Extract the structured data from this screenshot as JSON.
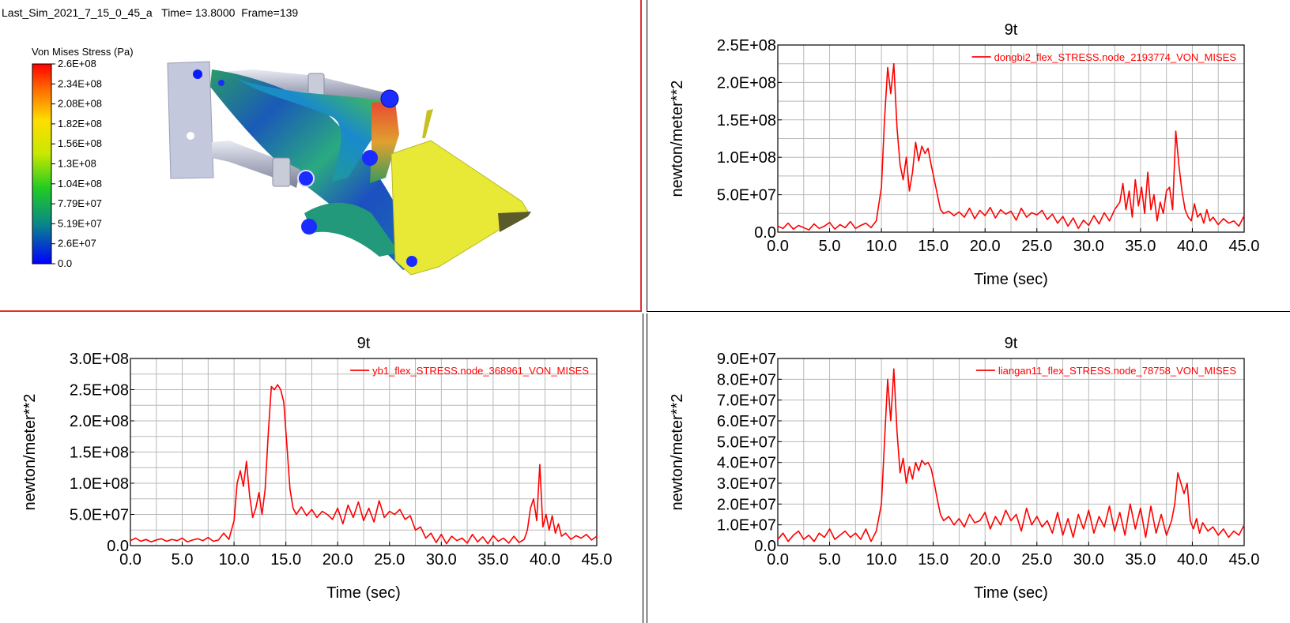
{
  "animation": {
    "sim_name": "Last_Sim_2021_7_15_0_45_a",
    "time_label": "Time= 13.8000",
    "frame_label": "Frame=139",
    "legend_title": "Von Mises Stress (Pa)",
    "legend_ticks": [
      "2.6E+08",
      "2.34E+08",
      "2.08E+08",
      "1.82E+08",
      "1.56E+08",
      "1.3E+08",
      "1.04E+08",
      "7.79E+07",
      "5.19E+07",
      "2.6E+07",
      "0.0"
    ],
    "colors": {
      "border": "#e03030",
      "stress_high": "#ff0000",
      "stress_low": "#0000ff",
      "bucket": "#e8e836",
      "frame": "#c4c8dc"
    }
  },
  "chart_data": [
    {
      "type": "line",
      "title": "9t",
      "xlabel": "Time (sec)",
      "ylabel": "newton/meter**2",
      "xlim": [
        0,
        45
      ],
      "ylim": [
        0,
        250000000
      ],
      "xticks": [
        "0.0",
        "5.0",
        "10.0",
        "15.0",
        "20.0",
        "25.0",
        "30.0",
        "35.0",
        "40.0",
        "45.0"
      ],
      "yticks": [
        "0.0",
        "5.0E+07",
        "1.0E+08",
        "1.5E+08",
        "2.0E+08",
        "2.5E+08"
      ],
      "grid": true,
      "legend_position": "top-right",
      "color": "#ff0000",
      "series": [
        {
          "name": "dongbi2_flex_STRESS.node_2193774_VON_MISES",
          "x": [
            0,
            0.5,
            1,
            1.5,
            2,
            2.5,
            3,
            3.5,
            4,
            4.5,
            5,
            5.5,
            6,
            6.5,
            7,
            7.5,
            8,
            8.5,
            9,
            9.5,
            10,
            10.3,
            10.6,
            10.9,
            11.2,
            11.5,
            11.8,
            12.1,
            12.4,
            12.7,
            13,
            13.3,
            13.6,
            13.9,
            14.2,
            14.5,
            14.8,
            15.1,
            15.4,
            15.7,
            16,
            16.5,
            17,
            17.5,
            18,
            18.5,
            19,
            19.5,
            20,
            20.5,
            21,
            21.5,
            22,
            22.5,
            23,
            23.5,
            24,
            24.5,
            25,
            25.5,
            26,
            26.5,
            27,
            27.5,
            28,
            28.5,
            29,
            29.5,
            30,
            30.5,
            31,
            31.5,
            32,
            32.5,
            33,
            33.3,
            33.6,
            33.9,
            34.2,
            34.5,
            34.8,
            35.1,
            35.4,
            35.7,
            36,
            36.3,
            36.6,
            36.9,
            37.2,
            37.5,
            37.8,
            38.1,
            38.4,
            38.7,
            39,
            39.3,
            39.6,
            39.9,
            40.2,
            40.5,
            40.8,
            41.1,
            41.4,
            41.7,
            42,
            42.5,
            43,
            43.5,
            44,
            44.5,
            45
          ],
          "values": [
            8000000,
            5000000,
            12000000,
            4000000,
            9000000,
            6000000,
            3000000,
            11000000,
            5000000,
            8000000,
            13000000,
            4000000,
            10000000,
            6000000,
            14000000,
            5000000,
            9000000,
            12000000,
            6000000,
            15000000,
            60000000,
            150000000,
            220000000,
            185000000,
            225000000,
            140000000,
            90000000,
            70000000,
            100000000,
            55000000,
            80000000,
            120000000,
            95000000,
            115000000,
            105000000,
            112000000,
            90000000,
            70000000,
            50000000,
            30000000,
            25000000,
            28000000,
            22000000,
            27000000,
            20000000,
            32000000,
            18000000,
            29000000,
            22000000,
            33000000,
            19000000,
            30000000,
            24000000,
            28000000,
            16000000,
            32000000,
            20000000,
            26000000,
            23000000,
            29000000,
            17000000,
            24000000,
            12000000,
            21000000,
            8000000,
            19000000,
            5000000,
            16000000,
            9000000,
            22000000,
            11000000,
            26000000,
            15000000,
            30000000,
            40000000,
            65000000,
            30000000,
            55000000,
            20000000,
            70000000,
            35000000,
            60000000,
            25000000,
            80000000,
            30000000,
            50000000,
            15000000,
            40000000,
            25000000,
            55000000,
            60000000,
            30000000,
            135000000,
            90000000,
            55000000,
            30000000,
            20000000,
            15000000,
            38000000,
            20000000,
            25000000,
            12000000,
            30000000,
            15000000,
            20000000,
            10000000,
            18000000,
            12000000,
            15000000,
            8000000,
            22000000
          ]
        }
      ]
    },
    {
      "type": "line",
      "title": "9t",
      "xlabel": "Time (sec)",
      "ylabel": "newton/meter**2",
      "xlim": [
        0,
        45
      ],
      "ylim": [
        0,
        300000000
      ],
      "xticks": [
        "0.0",
        "5.0",
        "10.0",
        "15.0",
        "20.0",
        "25.0",
        "30.0",
        "35.0",
        "40.0",
        "45.0"
      ],
      "yticks": [
        "0.0",
        "5.0E+07",
        "1.0E+08",
        "1.5E+08",
        "2.0E+08",
        "2.5E+08",
        "3.0E+08"
      ],
      "grid": true,
      "legend_position": "top-right",
      "color": "#ff0000",
      "series": [
        {
          "name": "yb1_flex_STRESS.node_368961_VON_MISES",
          "x": [
            0,
            0.5,
            1,
            1.5,
            2,
            2.5,
            3,
            3.5,
            4,
            4.5,
            5,
            5.5,
            6,
            6.5,
            7,
            7.5,
            8,
            8.5,
            9,
            9.5,
            10,
            10.3,
            10.6,
            10.9,
            11.2,
            11.5,
            11.8,
            12.1,
            12.4,
            12.7,
            13,
            13.3,
            13.6,
            13.9,
            14.2,
            14.5,
            14.8,
            15.1,
            15.4,
            15.7,
            16,
            16.5,
            17,
            17.5,
            18,
            18.5,
            19,
            19.5,
            20,
            20.5,
            21,
            21.5,
            22,
            22.5,
            23,
            23.5,
            24,
            24.5,
            25,
            25.5,
            26,
            26.5,
            27,
            27.5,
            28,
            28.5,
            29,
            29.5,
            30,
            30.5,
            31,
            31.5,
            32,
            32.5,
            33,
            33.5,
            34,
            34.5,
            35,
            35.5,
            36,
            36.5,
            37,
            37.5,
            38,
            38.3,
            38.6,
            38.9,
            39.2,
            39.5,
            39.8,
            40.1,
            40.4,
            40.7,
            41,
            41.3,
            41.6,
            42,
            42.5,
            43,
            43.5,
            44,
            44.5,
            45
          ],
          "values": [
            8000000,
            12000000,
            7000000,
            10000000,
            6000000,
            9000000,
            11000000,
            7000000,
            10000000,
            8000000,
            12000000,
            6000000,
            9000000,
            11000000,
            8000000,
            13000000,
            7000000,
            9000000,
            20000000,
            10000000,
            40000000,
            100000000,
            120000000,
            95000000,
            135000000,
            80000000,
            45000000,
            60000000,
            85000000,
            50000000,
            90000000,
            180000000,
            255000000,
            250000000,
            258000000,
            250000000,
            230000000,
            160000000,
            90000000,
            60000000,
            50000000,
            62000000,
            48000000,
            58000000,
            45000000,
            55000000,
            50000000,
            42000000,
            60000000,
            35000000,
            65000000,
            45000000,
            70000000,
            40000000,
            60000000,
            38000000,
            72000000,
            45000000,
            55000000,
            50000000,
            58000000,
            42000000,
            48000000,
            25000000,
            30000000,
            12000000,
            20000000,
            5000000,
            18000000,
            3000000,
            15000000,
            8000000,
            12000000,
            4000000,
            18000000,
            6000000,
            14000000,
            3000000,
            16000000,
            7000000,
            12000000,
            4000000,
            15000000,
            5000000,
            10000000,
            25000000,
            60000000,
            75000000,
            40000000,
            130000000,
            30000000,
            50000000,
            25000000,
            48000000,
            20000000,
            35000000,
            15000000,
            20000000,
            10000000,
            16000000,
            12000000,
            18000000,
            9000000,
            15000000
          ]
        }
      ]
    },
    {
      "type": "line",
      "title": "9t",
      "xlabel": "Time (sec)",
      "ylabel": "newton/meter**2",
      "xlim": [
        0,
        45
      ],
      "ylim": [
        0,
        90000000
      ],
      "xticks": [
        "0.0",
        "5.0",
        "10.0",
        "15.0",
        "20.0",
        "25.0",
        "30.0",
        "35.0",
        "40.0",
        "45.0"
      ],
      "yticks": [
        "0.0",
        "1.0E+07",
        "2.0E+07",
        "3.0E+07",
        "4.0E+07",
        "5.0E+07",
        "6.0E+07",
        "7.0E+07",
        "8.0E+07",
        "9.0E+07"
      ],
      "grid": true,
      "legend_position": "top-right",
      "color": "#ff0000",
      "series": [
        {
          "name": "liangan11_flex_STRESS.node_78758_VON_MISES",
          "x": [
            0,
            0.5,
            1,
            1.5,
            2,
            2.5,
            3,
            3.5,
            4,
            4.5,
            5,
            5.5,
            6,
            6.5,
            7,
            7.5,
            8,
            8.5,
            9,
            9.5,
            10,
            10.3,
            10.6,
            10.9,
            11.2,
            11.5,
            11.8,
            12.1,
            12.4,
            12.7,
            13,
            13.3,
            13.6,
            13.9,
            14.2,
            14.5,
            14.8,
            15.1,
            15.4,
            15.7,
            16,
            16.5,
            17,
            17.5,
            18,
            18.5,
            19,
            19.5,
            20,
            20.5,
            21,
            21.5,
            22,
            22.5,
            23,
            23.5,
            24,
            24.5,
            25,
            25.5,
            26,
            26.5,
            27,
            27.5,
            28,
            28.5,
            29,
            29.5,
            30,
            30.5,
            31,
            31.5,
            32,
            32.5,
            33,
            33.5,
            34,
            34.5,
            35,
            35.5,
            36,
            36.5,
            37,
            37.5,
            38,
            38.3,
            38.6,
            38.9,
            39.2,
            39.5,
            39.8,
            40.1,
            40.4,
            40.7,
            41,
            41.5,
            42,
            42.5,
            43,
            43.5,
            44,
            44.5,
            45
          ],
          "values": [
            3000000,
            6000000,
            2000000,
            5000000,
            7000000,
            3000000,
            5000000,
            2000000,
            6000000,
            4000000,
            8000000,
            3000000,
            5000000,
            7000000,
            4000000,
            6000000,
            3000000,
            8000000,
            2000000,
            7000000,
            20000000,
            50000000,
            80000000,
            60000000,
            85000000,
            55000000,
            35000000,
            42000000,
            30000000,
            38000000,
            32000000,
            40000000,
            36000000,
            41000000,
            39000000,
            40000000,
            37000000,
            30000000,
            22000000,
            15000000,
            12000000,
            14000000,
            10000000,
            13000000,
            9000000,
            15000000,
            11000000,
            12000000,
            16000000,
            8000000,
            14000000,
            10000000,
            17000000,
            12000000,
            15000000,
            7000000,
            18000000,
            10000000,
            14000000,
            9000000,
            12000000,
            6000000,
            16000000,
            5000000,
            13000000,
            4000000,
            15000000,
            8000000,
            17000000,
            6000000,
            14000000,
            9000000,
            19000000,
            7000000,
            16000000,
            5000000,
            20000000,
            8000000,
            18000000,
            4000000,
            19000000,
            6000000,
            15000000,
            5000000,
            12000000,
            20000000,
            35000000,
            30000000,
            25000000,
            30000000,
            12000000,
            8000000,
            13000000,
            6000000,
            11000000,
            7000000,
            9000000,
            5000000,
            8000000,
            4000000,
            7000000,
            5000000,
            10000000
          ]
        }
      ]
    }
  ]
}
